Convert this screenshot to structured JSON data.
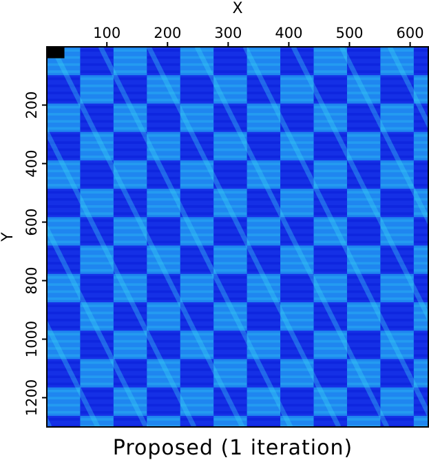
{
  "chart_data": {
    "type": "heatmap",
    "title": "Proposed (1 iteration)",
    "xlabel": "X",
    "ylabel": "Y",
    "xlim": [
      1,
      630
    ],
    "ylim": [
      1,
      1300
    ],
    "x_ticks": [
      100,
      200,
      300,
      400,
      500,
      600
    ],
    "y_ticks": [
      200,
      400,
      600,
      800,
      1000,
      1200
    ],
    "x_axis_position": "top",
    "y_axis_direction": "downward",
    "colormap": [
      "#0a1fd9",
      "#1530e6",
      "#1c58ee",
      "#1f86f0",
      "#2bb6f2",
      "#3ad6f6"
    ],
    "pattern": "checkerboard blocks of bright cyan and deep blue with diagonal streaks running from upper-left to lower-right",
    "block_size": [
      55,
      97
    ],
    "marker": {
      "color": "#000000",
      "x": [
        1,
        30
      ],
      "y": [
        1,
        40
      ]
    },
    "grid": false,
    "legend": "none"
  },
  "colors": {
    "background": "#ffffff",
    "axis": "#000000"
  }
}
